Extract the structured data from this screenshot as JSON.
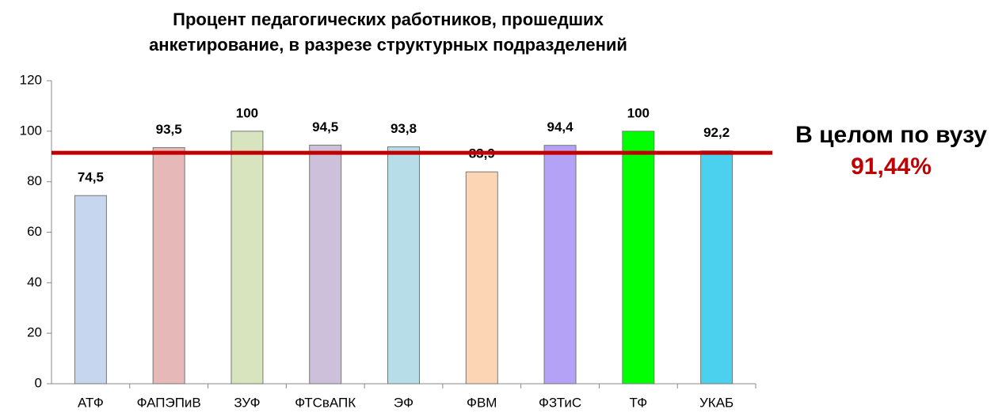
{
  "chart_data": {
    "type": "bar",
    "title": [
      "Процент педагогических работников, прошедших",
      "анкетирование, в разрезе структурных подразделений"
    ],
    "categories": [
      "АТФ",
      "ФАПЭПиВ",
      "ЗУФ",
      "ФТСвАПК",
      "ЭФ",
      "ФВМ",
      "ФЗТиС",
      "ТФ",
      "УКАБ"
    ],
    "values": [
      74.5,
      93.5,
      100,
      94.5,
      93.8,
      83.9,
      94.4,
      100,
      92.2
    ],
    "value_labels": [
      "74,5",
      "93,5",
      "100",
      "94,5",
      "93,8",
      "83,9",
      "94,4",
      "100",
      "92,2"
    ],
    "colors": [
      "#c6d6ef",
      "#e6b8b7",
      "#d7e4bd",
      "#ccc0da",
      "#b7dde8",
      "#fcd5b5",
      "#b3a2f5",
      "#00ff00",
      "#4bd0ee"
    ],
    "ylim": [
      0,
      120
    ],
    "yticks": [
      0,
      20,
      40,
      60,
      80,
      100,
      120
    ],
    "reference_line": {
      "value": 91.44,
      "label": "91,44%",
      "text": "В целом по вузу",
      "color": "#c00000"
    }
  }
}
